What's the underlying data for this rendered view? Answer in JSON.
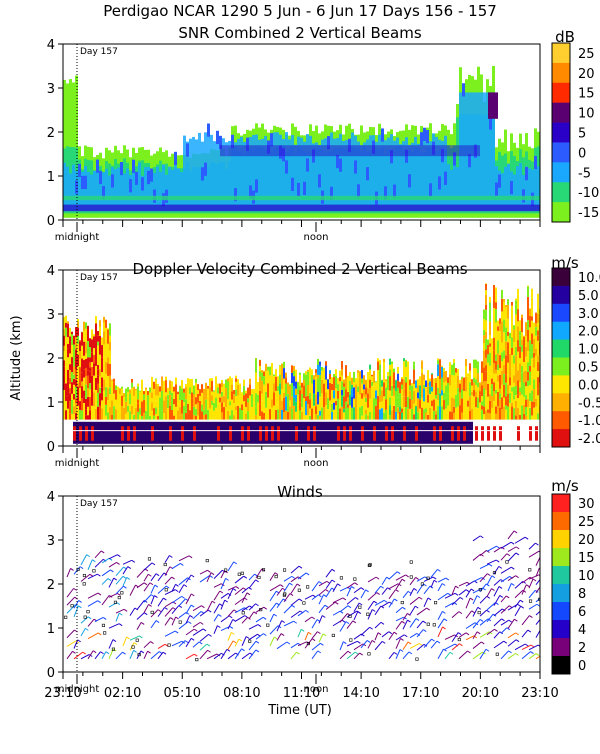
{
  "header": {
    "title_line": "Perdigao NCAR 1290   5 Jun -   6 Jun 17 Days 156 - 157"
  },
  "chart_data": [
    {
      "type": "heatmap",
      "title": "SNR Combined 2 Vertical Beams",
      "unit": "dB",
      "ylabel": "",
      "ylim": [
        0,
        4
      ],
      "yticks": [
        "0",
        "1",
        "2",
        "3",
        "4"
      ],
      "day_marker": "Day 157",
      "x_markers": [
        "midnight",
        "noon"
      ],
      "colorbar": {
        "labels": [
          "25",
          "20",
          "15",
          "10",
          "5",
          "0",
          "-5",
          "-10",
          "-15"
        ],
        "colors": [
          "#ffcf30",
          "#ff8a00",
          "#ff2a00",
          "#5a0070",
          "#2a00c8",
          "#2c5cff",
          "#1aa8ff",
          "#28d876",
          "#7cf01e"
        ]
      },
      "description_values": {
        "boundary_layer_top_km_early": 1.7,
        "boundary_layer_top_km_midday": 2.0,
        "late_plume_top_km": 3.6
      }
    },
    {
      "type": "heatmap",
      "title": "Doppler Velocity Combined 2 Vertical Beams",
      "unit": "m/s",
      "ylabel": "Altitude (km)",
      "ylim": [
        0,
        4
      ],
      "yticks": [
        "0",
        "1",
        "2",
        "3",
        "4"
      ],
      "day_marker": "Day 157",
      "x_markers": [
        "midnight",
        "noon"
      ],
      "colorbar": {
        "labels": [
          "10.0",
          "5.0",
          "3.0",
          "2.0",
          "1.0",
          "0.5",
          "0.0",
          "-0.5",
          "-1.0",
          "-2.0"
        ],
        "colors": [
          "#3a003a",
          "#2400a0",
          "#1a48ff",
          "#10a8ff",
          "#20d868",
          "#7cf01e",
          "#ffe600",
          "#ffb000",
          "#ff5a00",
          "#e01010"
        ]
      }
    },
    {
      "type": "barbs",
      "title": "Winds",
      "unit": "m/s",
      "ylabel": "",
      "ylim": [
        0,
        4
      ],
      "yticks": [
        "0",
        "1",
        "2",
        "3",
        "4"
      ],
      "day_marker": "Day 157",
      "x_markers": [
        "midnight",
        "noon"
      ],
      "xlabel": "Time (UT)",
      "xticks": [
        "23:10",
        "02:10",
        "05:10",
        "08:10",
        "11:10",
        "14:10",
        "17:10",
        "20:10",
        "23:10"
      ],
      "colorbar": {
        "labels": [
          "30",
          "25",
          "20",
          "15",
          "10",
          "8",
          "6",
          "4",
          "2",
          "0"
        ],
        "colors": [
          "#ff2020",
          "#ff6a00",
          "#ffd200",
          "#9ee81e",
          "#20c8a0",
          "#14a0e0",
          "#1448ff",
          "#2400c8",
          "#780078",
          "#000000"
        ]
      }
    }
  ]
}
